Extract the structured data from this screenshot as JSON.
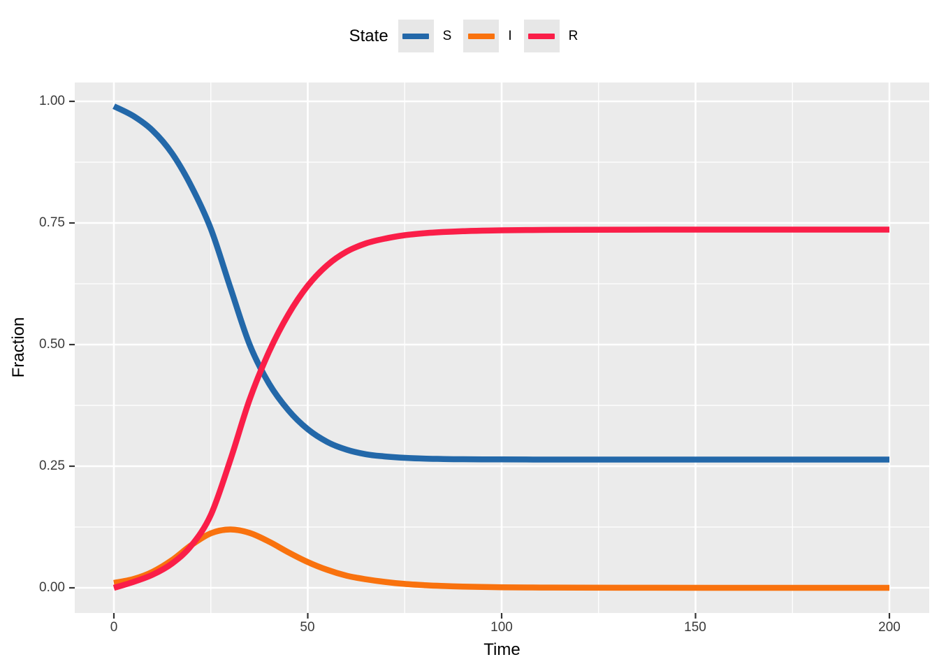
{
  "legend": {
    "title": "State",
    "items": [
      {
        "label": "S",
        "color": "#2368A9"
      },
      {
        "label": "I",
        "color": "#F9720E"
      },
      {
        "label": "R",
        "color": "#FA1E48"
      }
    ]
  },
  "axes": {
    "x": {
      "title": "Time",
      "tick_labels": [
        "0",
        "50",
        "100",
        "150",
        "200"
      ]
    },
    "y": {
      "title": "Fraction",
      "tick_labels": [
        "1.00",
        "0.75",
        "0.50",
        "0.25",
        "0.00"
      ]
    }
  },
  "colors": {
    "panel_background": "#EBEBEB",
    "gridline": "#FFFFFF",
    "tick_mark": "#333333",
    "axis_text": "#3A3A3A",
    "legend_key_background": "#E7E7E7"
  },
  "chart_data": {
    "type": "line",
    "title": "",
    "xlabel": "Time",
    "ylabel": "Fraction",
    "legend_title": "State",
    "legend_position": "top",
    "grid": true,
    "xlim": [
      0,
      200
    ],
    "ylim": [
      0,
      1
    ],
    "x_major_ticks": [
      0,
      50,
      100,
      150,
      200
    ],
    "x_minor_gridlines": [
      25,
      75,
      125,
      175
    ],
    "y_major_ticks": [
      0,
      0.25,
      0.5,
      0.75,
      1
    ],
    "y_minor_gridlines": [
      0.125,
      0.375,
      0.625,
      0.875
    ],
    "x": [
      0,
      5,
      10,
      15,
      20,
      25,
      30,
      35,
      40,
      45,
      50,
      55,
      60,
      65,
      70,
      75,
      80,
      85,
      90,
      95,
      100,
      110,
      120,
      140,
      160,
      180,
      200
    ],
    "series": [
      {
        "name": "S",
        "color": "#2368A9",
        "values": [
          0.99,
          0.97,
          0.94,
          0.893,
          0.825,
          0.738,
          0.618,
          0.5,
          0.42,
          0.365,
          0.326,
          0.3,
          0.284,
          0.2745,
          0.27,
          0.2672,
          0.2656,
          0.2648,
          0.2643,
          0.264,
          0.2639,
          0.2637,
          0.2636,
          0.2636,
          0.2636,
          0.2636,
          0.2636
        ]
      },
      {
        "name": "I",
        "color": "#F9720E",
        "values": [
          0.01,
          0.018,
          0.033,
          0.057,
          0.088,
          0.112,
          0.12,
          0.113,
          0.095,
          0.073,
          0.053,
          0.037,
          0.025,
          0.0175,
          0.012,
          0.008,
          0.0055,
          0.0038,
          0.0026,
          0.0018,
          0.0012,
          0.0006,
          0.0003,
          0.0001,
          0.0,
          0.0,
          0.0
        ]
      },
      {
        "name": "R",
        "color": "#FA1E48",
        "values": [
          0.0,
          0.012,
          0.027,
          0.05,
          0.087,
          0.15,
          0.262,
          0.387,
          0.485,
          0.562,
          0.621,
          0.663,
          0.691,
          0.708,
          0.718,
          0.7248,
          0.7289,
          0.7314,
          0.7331,
          0.7342,
          0.7349,
          0.7357,
          0.7361,
          0.7363,
          0.7364,
          0.7364,
          0.7364
        ]
      }
    ]
  }
}
